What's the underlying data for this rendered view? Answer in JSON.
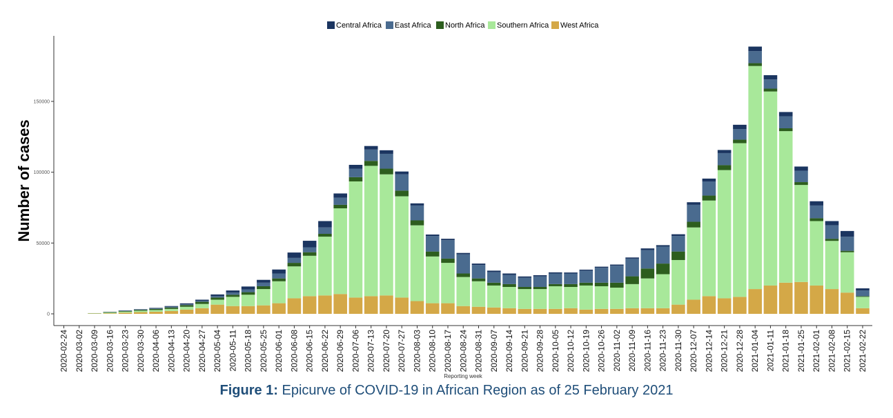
{
  "caption": {
    "bold": "Figure 1:",
    "text": " Epicurve of COVID-19 in African Region as of 25 February 2021"
  },
  "chart_data": {
    "type": "bar",
    "stacked": true,
    "xlabel": "Reporting week",
    "ylabel": "Number of cases",
    "ylim": [
      0,
      190000
    ],
    "yticks": [
      0,
      50000,
      100000,
      150000
    ],
    "legend_position": "top",
    "categories": [
      "2020-02-24",
      "2020-03-02",
      "2020-03-09",
      "2020-03-16",
      "2020-03-23",
      "2020-03-30",
      "2020-04-06",
      "2020-04-13",
      "2020-04-20",
      "2020-04-27",
      "2020-05-04",
      "2020-05-11",
      "2020-05-18",
      "2020-05-25",
      "2020-06-01",
      "2020-06-08",
      "2020-06-15",
      "2020-06-22",
      "2020-06-29",
      "2020-07-06",
      "2020-07-13",
      "2020-07-20",
      "2020-07-27",
      "2020-08-03",
      "2020-08-10",
      "2020-08-17",
      "2020-08-24",
      "2020-08-31",
      "2020-09-07",
      "2020-09-14",
      "2020-09-21",
      "2020-09-28",
      "2020-10-05",
      "2020-10-12",
      "2020-10-19",
      "2020-10-26",
      "2020-11-02",
      "2020-11-09",
      "2020-11-16",
      "2020-11-23",
      "2020-11-30",
      "2020-12-07",
      "2020-12-14",
      "2020-12-21",
      "2020-12-28",
      "2021-01-04",
      "2021-01-11",
      "2021-01-18",
      "2021-01-25",
      "2021-02-01",
      "2021-02-08",
      "2021-02-15",
      "2021-02-22"
    ],
    "series": [
      {
        "name": "West Africa",
        "color": "#d4a847",
        "values": [
          0,
          0,
          200,
          400,
          800,
          1200,
          1500,
          2000,
          3000,
          4000,
          6500,
          5500,
          5500,
          6000,
          7500,
          11000,
          12500,
          13000,
          14000,
          11500,
          12500,
          13000,
          11500,
          9000,
          7500,
          7500,
          5500,
          5000,
          4500,
          4000,
          3500,
          3500,
          3500,
          4000,
          3000,
          3500,
          3500,
          4000,
          4000,
          4000,
          6500,
          10000,
          12500,
          11000,
          12000,
          17500,
          20000,
          22000,
          22500,
          20000,
          17500,
          15000,
          4000
        ]
      },
      {
        "name": "Southern Africa",
        "color": "#a8e89a",
        "values": [
          0,
          0,
          200,
          500,
          800,
          1000,
          1200,
          1500,
          2000,
          3000,
          3500,
          6500,
          8000,
          11500,
          15500,
          22500,
          28500,
          41500,
          60500,
          82000,
          92000,
          85500,
          71500,
          53500,
          33000,
          28500,
          20500,
          18000,
          15500,
          15000,
          14000,
          14000,
          16000,
          15000,
          17000,
          16000,
          15000,
          17000,
          21000,
          24000,
          31500,
          51000,
          67500,
          90500,
          108500,
          157500,
          137000,
          107000,
          68500,
          45500,
          34000,
          28500,
          8000
        ]
      },
      {
        "name": "North Africa",
        "color": "#2d5e1e",
        "values": [
          0,
          0,
          100,
          300,
          400,
          600,
          800,
          1000,
          1200,
          1500,
          1500,
          1500,
          1800,
          2000,
          2000,
          2500,
          2500,
          2000,
          2500,
          3000,
          3500,
          4000,
          4000,
          3500,
          3500,
          3000,
          2500,
          2000,
          2000,
          2000,
          1500,
          1500,
          1500,
          2000,
          2000,
          2500,
          3500,
          5500,
          7000,
          7500,
          6000,
          4000,
          3500,
          3500,
          2500,
          2000,
          2000,
          2000,
          2000,
          2000,
          1500,
          1000,
          500
        ]
      },
      {
        "name": "East Africa",
        "color": "#4a6b8f",
        "values": [
          0,
          0,
          0,
          100,
          200,
          300,
          400,
          500,
          500,
          700,
          1000,
          1500,
          2000,
          2500,
          3500,
          3500,
          3500,
          4500,
          5000,
          6000,
          8000,
          10500,
          11500,
          10500,
          11000,
          13000,
          13500,
          9500,
          7500,
          6500,
          6500,
          7500,
          7500,
          7500,
          8500,
          10500,
          12000,
          12500,
          13000,
          12000,
          11000,
          12000,
          10000,
          8500,
          7500,
          8500,
          6500,
          8500,
          8000,
          9000,
          9500,
          10000,
          4000
        ]
      },
      {
        "name": "Central Africa",
        "color": "#1b3560",
        "values": [
          0,
          0,
          0,
          100,
          200,
          200,
          300,
          500,
          700,
          800,
          1200,
          1500,
          2000,
          2000,
          2800,
          3800,
          4600,
          4500,
          3000,
          2700,
          2500,
          2500,
          2000,
          1500,
          1000,
          1000,
          1000,
          1000,
          1000,
          1000,
          900,
          800,
          800,
          700,
          700,
          800,
          800,
          800,
          1200,
          1000,
          1200,
          1800,
          2000,
          2200,
          3000,
          3200,
          3000,
          3000,
          3000,
          3000,
          3000,
          4000,
          1500
        ]
      }
    ],
    "legend_order": [
      "Central Africa",
      "East Africa",
      "North Africa",
      "Southern Africa",
      "West Africa"
    ]
  }
}
